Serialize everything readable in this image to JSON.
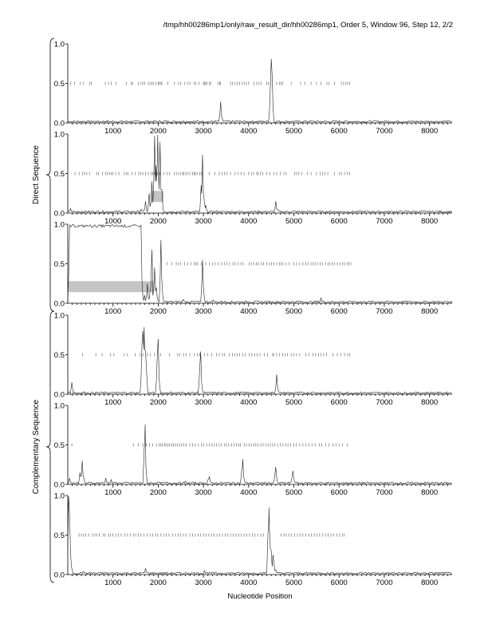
{
  "header": {
    "title": "/tmp/hh00286mp1/only/raw_result_dir/hh00286mp1, Order 5, Window 96, Step 12, 2/2"
  },
  "groups": {
    "direct": "Direct Sequence",
    "complementary": "Complementary Sequence"
  },
  "chart_data": {
    "type": "line",
    "xlabel": "Nucleotide Position",
    "xlim": [
      0,
      8500
    ],
    "ylim": [
      0,
      1
    ],
    "x_ticks": [
      1000,
      2000,
      3000,
      4000,
      5000,
      6000,
      7000,
      8000
    ],
    "y_ticks": [
      "0.0",
      "0.5",
      "1.0"
    ],
    "grid": false,
    "panels": [
      {
        "group": "direct",
        "baseline": 0.02,
        "peaks": [
          [
            3380,
            0.27
          ],
          [
            3420,
            0.05
          ],
          [
            3750,
            0.03
          ],
          [
            3830,
            0.02
          ],
          [
            4480,
            0.45
          ],
          [
            4500,
            0.81
          ],
          [
            4520,
            0.6
          ]
        ],
        "orf_ticks": [
          60,
          150,
          280,
          350,
          480,
          520,
          830,
          900,
          960,
          1060,
          1300,
          1400,
          1430,
          1560,
          1620,
          1660,
          1700,
          1780,
          1820,
          1860,
          1900,
          1950,
          2000,
          2020,
          2060,
          2080,
          2210,
          2360,
          2450,
          2500,
          2590,
          2650,
          2700,
          2800,
          2830,
          2900,
          3000,
          3020,
          3050,
          3080,
          3130,
          3160,
          3320,
          3360,
          3380,
          3600,
          3640,
          3700,
          3750,
          3800,
          3850,
          3900,
          3950,
          4000,
          4120,
          4180,
          4230,
          4280,
          4400,
          4440,
          4620,
          4680,
          4720,
          4750,
          4940,
          5150,
          5240,
          5380,
          5500,
          5600,
          5730,
          5780,
          5900,
          6050,
          6100,
          6150,
          6190,
          6230
        ],
        "bands": []
      },
      {
        "group": "direct",
        "baseline": 0.02,
        "peaks": [
          [
            60,
            0.06
          ],
          [
            1620,
            0.05
          ],
          [
            1720,
            0.15
          ],
          [
            1800,
            0.25
          ],
          [
            1860,
            0.4
          ],
          [
            1920,
            0.98
          ],
          [
            1950,
            0.6
          ],
          [
            1990,
            0.99
          ],
          [
            2040,
            0.9
          ],
          [
            2080,
            0.3
          ],
          [
            2950,
            0.35
          ],
          [
            2980,
            0.74
          ],
          [
            3010,
            0.2
          ],
          [
            3050,
            0.1
          ],
          [
            4600,
            0.15
          ],
          [
            4640,
            0.05
          ]
        ],
        "orf_ticks": [
          160,
          250,
          330,
          370,
          420,
          480,
          640,
          680,
          770,
          840,
          880,
          920,
          960,
          1000,
          1060,
          1130,
          1250,
          1300,
          1330,
          1420,
          1490,
          1570,
          1610,
          1660,
          1720,
          1780,
          1840,
          1880,
          1920,
          1980,
          2040,
          2120,
          2190,
          2250,
          2350,
          2400,
          2450,
          2500,
          2540,
          2570,
          2610,
          2650,
          2700,
          2760,
          2800,
          2820,
          2860,
          2920,
          2950,
          3130,
          3250,
          3350,
          3410,
          3470,
          3520,
          3600,
          3700,
          3760,
          3830,
          3900,
          4000,
          4060,
          4110,
          4180,
          4210,
          4260,
          4310,
          4400,
          4470,
          4560,
          4620,
          4700,
          4780,
          4830,
          5020,
          5060,
          5110,
          5180,
          5300,
          5380,
          5500,
          5580,
          5640,
          5690,
          5750,
          5900,
          6010,
          6050,
          6120,
          6180,
          6230
        ],
        "bands": [
          [
            1840,
            2120
          ]
        ]
      },
      {
        "group": "direct",
        "baseline": 0.02,
        "peaks": [
          [
            40,
            0.99
          ],
          [
            200,
            0.97
          ],
          [
            500,
            0.99
          ],
          [
            1000,
            0.99
          ],
          [
            1500,
            0.99
          ],
          [
            1620,
            0.97
          ],
          [
            1640,
            0.3
          ],
          [
            1700,
            0.1
          ],
          [
            1760,
            0.25
          ],
          [
            1820,
            0.15
          ],
          [
            1860,
            0.68
          ],
          [
            1880,
            0.1
          ],
          [
            1920,
            0.45
          ],
          [
            1960,
            0.2
          ],
          [
            2060,
            0.8
          ],
          [
            2080,
            0.3
          ],
          [
            2550,
            0.05
          ],
          [
            2980,
            0.55
          ],
          [
            3000,
            0.2
          ],
          [
            3220,
            0.04
          ],
          [
            3400,
            0.03
          ],
          [
            4000,
            0.02
          ],
          [
            5100,
            0.03
          ],
          [
            5600,
            0.07
          ],
          [
            5640,
            0.02
          ]
        ],
        "plateau": [
          60,
          1620
        ],
        "orf_ticks": [
          2200,
          2300,
          2400,
          2450,
          2500,
          2580,
          2650,
          2720,
          2800,
          2830,
          2870,
          2950,
          3050,
          3130,
          3200,
          3260,
          3320,
          3400,
          3460,
          3520,
          3580,
          3650,
          3700,
          3760,
          3830,
          3880,
          4010,
          4060,
          4120,
          4170,
          4210,
          4280,
          4330,
          4400,
          4460,
          4510,
          4560,
          4620,
          4680,
          4720,
          4760,
          4830,
          4900,
          5000,
          5060,
          5130,
          5200,
          5260,
          5320,
          5380,
          5420,
          5470,
          5520,
          5580,
          5630,
          5700,
          5760,
          5800,
          5850,
          5900,
          5960,
          6020,
          6080,
          6120,
          6180,
          6220,
          6260
        ],
        "bands": [
          [
            20,
            1900
          ]
        ]
      },
      {
        "group": "complementary",
        "baseline": 0.02,
        "peaks": [
          [
            40,
            0.03
          ],
          [
            90,
            0.15
          ],
          [
            150,
            0.03
          ],
          [
            350,
            0.03
          ],
          [
            1640,
            0.62
          ],
          [
            1660,
            0.8
          ],
          [
            1690,
            0.85
          ],
          [
            1720,
            0.55
          ],
          [
            1740,
            0.3
          ],
          [
            1980,
            0.5
          ],
          [
            2000,
            0.7
          ],
          [
            2020,
            0.2
          ],
          [
            2920,
            0.35
          ],
          [
            2940,
            0.54
          ],
          [
            2960,
            0.15
          ],
          [
            4620,
            0.25
          ],
          [
            4640,
            0.1
          ],
          [
            5400,
            0.03
          ]
        ],
        "orf_ticks": [
          330,
          620,
          760,
          940,
          1020,
          1250,
          1320,
          1490,
          1590,
          1660,
          1750,
          1830,
          1920,
          2050,
          2250,
          2430,
          2470,
          2560,
          2620,
          2700,
          2800,
          2870,
          2920,
          3020,
          3090,
          3180,
          3290,
          3350,
          3420,
          3470,
          3570,
          3640,
          3700,
          3750,
          3800,
          3870,
          3930,
          4010,
          4070,
          4130,
          4190,
          4250,
          4350,
          4420,
          4520,
          4560,
          4620,
          4680,
          4750,
          4800,
          4860,
          4940,
          5000,
          5060,
          5130,
          5260,
          5340,
          5420,
          5480,
          5550,
          5600,
          5660,
          5720,
          5860,
          5960,
          6040,
          6120,
          6190,
          6230
        ],
        "bands": []
      },
      {
        "group": "complementary",
        "baseline": 0.02,
        "peaks": [
          [
            40,
            0.08
          ],
          [
            80,
            0.02
          ],
          [
            270,
            0.15
          ],
          [
            320,
            0.3
          ],
          [
            350,
            0.1
          ],
          [
            840,
            0.08
          ],
          [
            880,
            0.03
          ],
          [
            960,
            0.06
          ],
          [
            1690,
            0.45
          ],
          [
            1710,
            0.76
          ],
          [
            1730,
            0.2
          ],
          [
            2000,
            0.03
          ],
          [
            2600,
            0.04
          ],
          [
            3100,
            0.06
          ],
          [
            3130,
            0.1
          ],
          [
            3850,
            0.2
          ],
          [
            3870,
            0.32
          ],
          [
            3890,
            0.1
          ],
          [
            4580,
            0.12
          ],
          [
            4600,
            0.22
          ],
          [
            4620,
            0.08
          ],
          [
            4960,
            0.1
          ],
          [
            4980,
            0.17
          ],
          [
            5000,
            0.08
          ]
        ],
        "orf_ticks": [
          90,
          1450,
          1560,
          1660,
          1740,
          1810,
          1880,
          1960,
          2020,
          2050,
          2090,
          2140,
          2170,
          2210,
          2250,
          2300,
          2340,
          2380,
          2420,
          2470,
          2520,
          2570,
          2620,
          2700,
          2760,
          2820,
          2890,
          2950,
          3000,
          3070,
          3130,
          3190,
          3240,
          3290,
          3350,
          3400,
          3460,
          3500,
          3560,
          3620,
          3680,
          3730,
          3780,
          3820,
          3900,
          3950,
          4010,
          4060,
          4120,
          4160,
          4210,
          4270,
          4320,
          4380,
          4430,
          4480,
          4530,
          4580,
          4640,
          4700,
          4760,
          4820,
          4870,
          4930,
          5000,
          5050,
          5130,
          5200,
          5270,
          5340,
          5400,
          5470,
          5560,
          5620,
          5700,
          5780,
          5860,
          5930,
          6000,
          6080,
          6180
        ],
        "bands": []
      },
      {
        "group": "complementary",
        "baseline": 0.02,
        "peaks": [
          [
            20,
            0.99
          ],
          [
            40,
            0.75
          ],
          [
            60,
            0.3
          ],
          [
            90,
            0.08
          ],
          [
            340,
            0.04
          ],
          [
            1720,
            0.08
          ],
          [
            3020,
            0.05
          ],
          [
            3080,
            0.03
          ],
          [
            4430,
            0.55
          ],
          [
            4450,
            0.85
          ],
          [
            4470,
            0.5
          ],
          [
            4500,
            0.3
          ],
          [
            4540,
            0.25
          ],
          [
            4560,
            0.15
          ],
          [
            4600,
            0.06
          ]
        ],
        "orf_ticks": [
          250,
          300,
          350,
          400,
          470,
          550,
          600,
          640,
          700,
          780,
          820,
          900,
          940,
          1000,
          1060,
          1120,
          1180,
          1260,
          1320,
          1380,
          1450,
          1500,
          1560,
          1620,
          1680,
          1760,
          1820,
          1880,
          1940,
          1990,
          2060,
          2120,
          2180,
          2240,
          2320,
          2380,
          2440,
          2500,
          2560,
          2620,
          2700,
          2760,
          2820,
          2880,
          2940,
          3010,
          3060,
          3120,
          3180,
          3240,
          3300,
          3360,
          3420,
          3480,
          3540,
          3600,
          3660,
          3720,
          3780,
          3840,
          3900,
          3960,
          4020,
          4080,
          4140,
          4200,
          4270,
          4330,
          4720,
          4780,
          4830,
          4890,
          4950,
          5020,
          5080,
          5140,
          5200,
          5260,
          5330,
          5390,
          5450,
          5510,
          5570,
          5640,
          5700,
          5760,
          5820,
          5880,
          5950,
          6010,
          6070,
          6110
        ],
        "bands": []
      }
    ]
  }
}
